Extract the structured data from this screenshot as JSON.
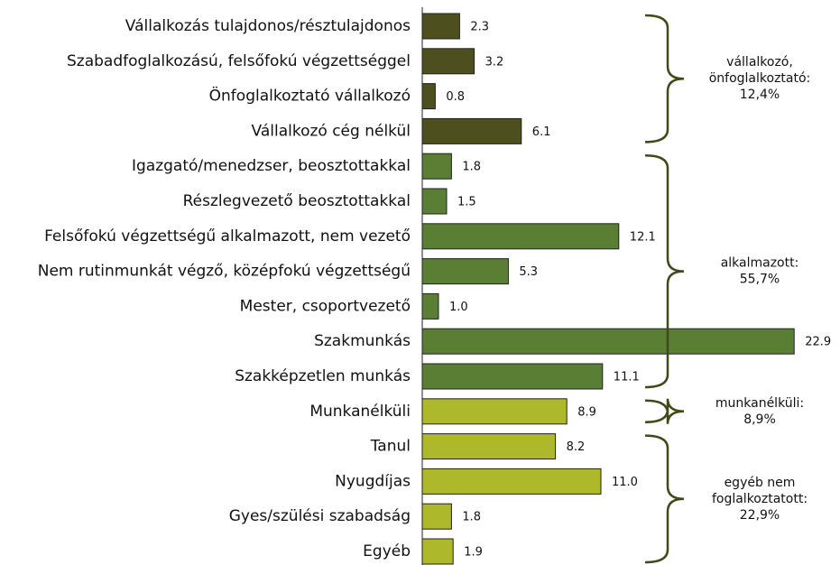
{
  "chart_data": {
    "type": "bar",
    "orientation": "horizontal",
    "xlim": [
      0,
      25
    ],
    "groups": [
      {
        "color": "#4d4f1e",
        "annotation": [
          "vállalkozó,",
          "önfoglalkoztató:",
          "12,4%"
        ],
        "categories": [
          "Vállalkozás tulajdonos/résztulajdonos",
          "Szabadfoglalkozású, felsőfokú végzettséggel",
          "Önfoglalkoztató vállalkozó",
          "Vállalkozó cég nélkül"
        ],
        "values": [
          2.3,
          3.2,
          0.8,
          6.1
        ],
        "value_labels": [
          "2.3",
          "3.2",
          "0.8",
          "6.1"
        ]
      },
      {
        "color": "#5b7e35",
        "annotation": [
          "alkalmazott:",
          "55,7%"
        ],
        "categories": [
          "Igazgató/menedzser, beosztottakkal",
          "Részlegvezető beosztottakkal",
          "Felsőfokú végzettségű alkalmazott, nem vezető",
          "Nem rutinmunkát végző, középfokú végzettségű",
          "Mester, csoportvezető",
          "Szakmunkás",
          "Szakképzetlen munkás"
        ],
        "values": [
          1.8,
          1.5,
          12.1,
          5.3,
          1.0,
          22.9,
          11.1
        ],
        "value_labels": [
          "1.8",
          "1.5",
          "12.1",
          "5.3",
          "1.0",
          "22.9",
          "11.1"
        ]
      },
      {
        "color": "#adb82a",
        "annotation": [
          "munkanélküli:",
          "8,9%"
        ],
        "categories": [
          "Munkanélküli"
        ],
        "values": [
          8.9
        ],
        "value_labels": [
          "8.9"
        ]
      },
      {
        "color": "#adb82a",
        "annotation": [
          "egyéb nem",
          "foglalkoztatott:",
          "22,9%"
        ],
        "categories": [
          "Tanul",
          "Nyugdíjas",
          "Gyes/szülési szabadság",
          "Egyéb"
        ],
        "values": [
          8.2,
          11.0,
          1.8,
          1.9
        ],
        "value_labels": [
          "8.2",
          "11.0",
          "1.8",
          "1.9"
        ]
      }
    ]
  }
}
